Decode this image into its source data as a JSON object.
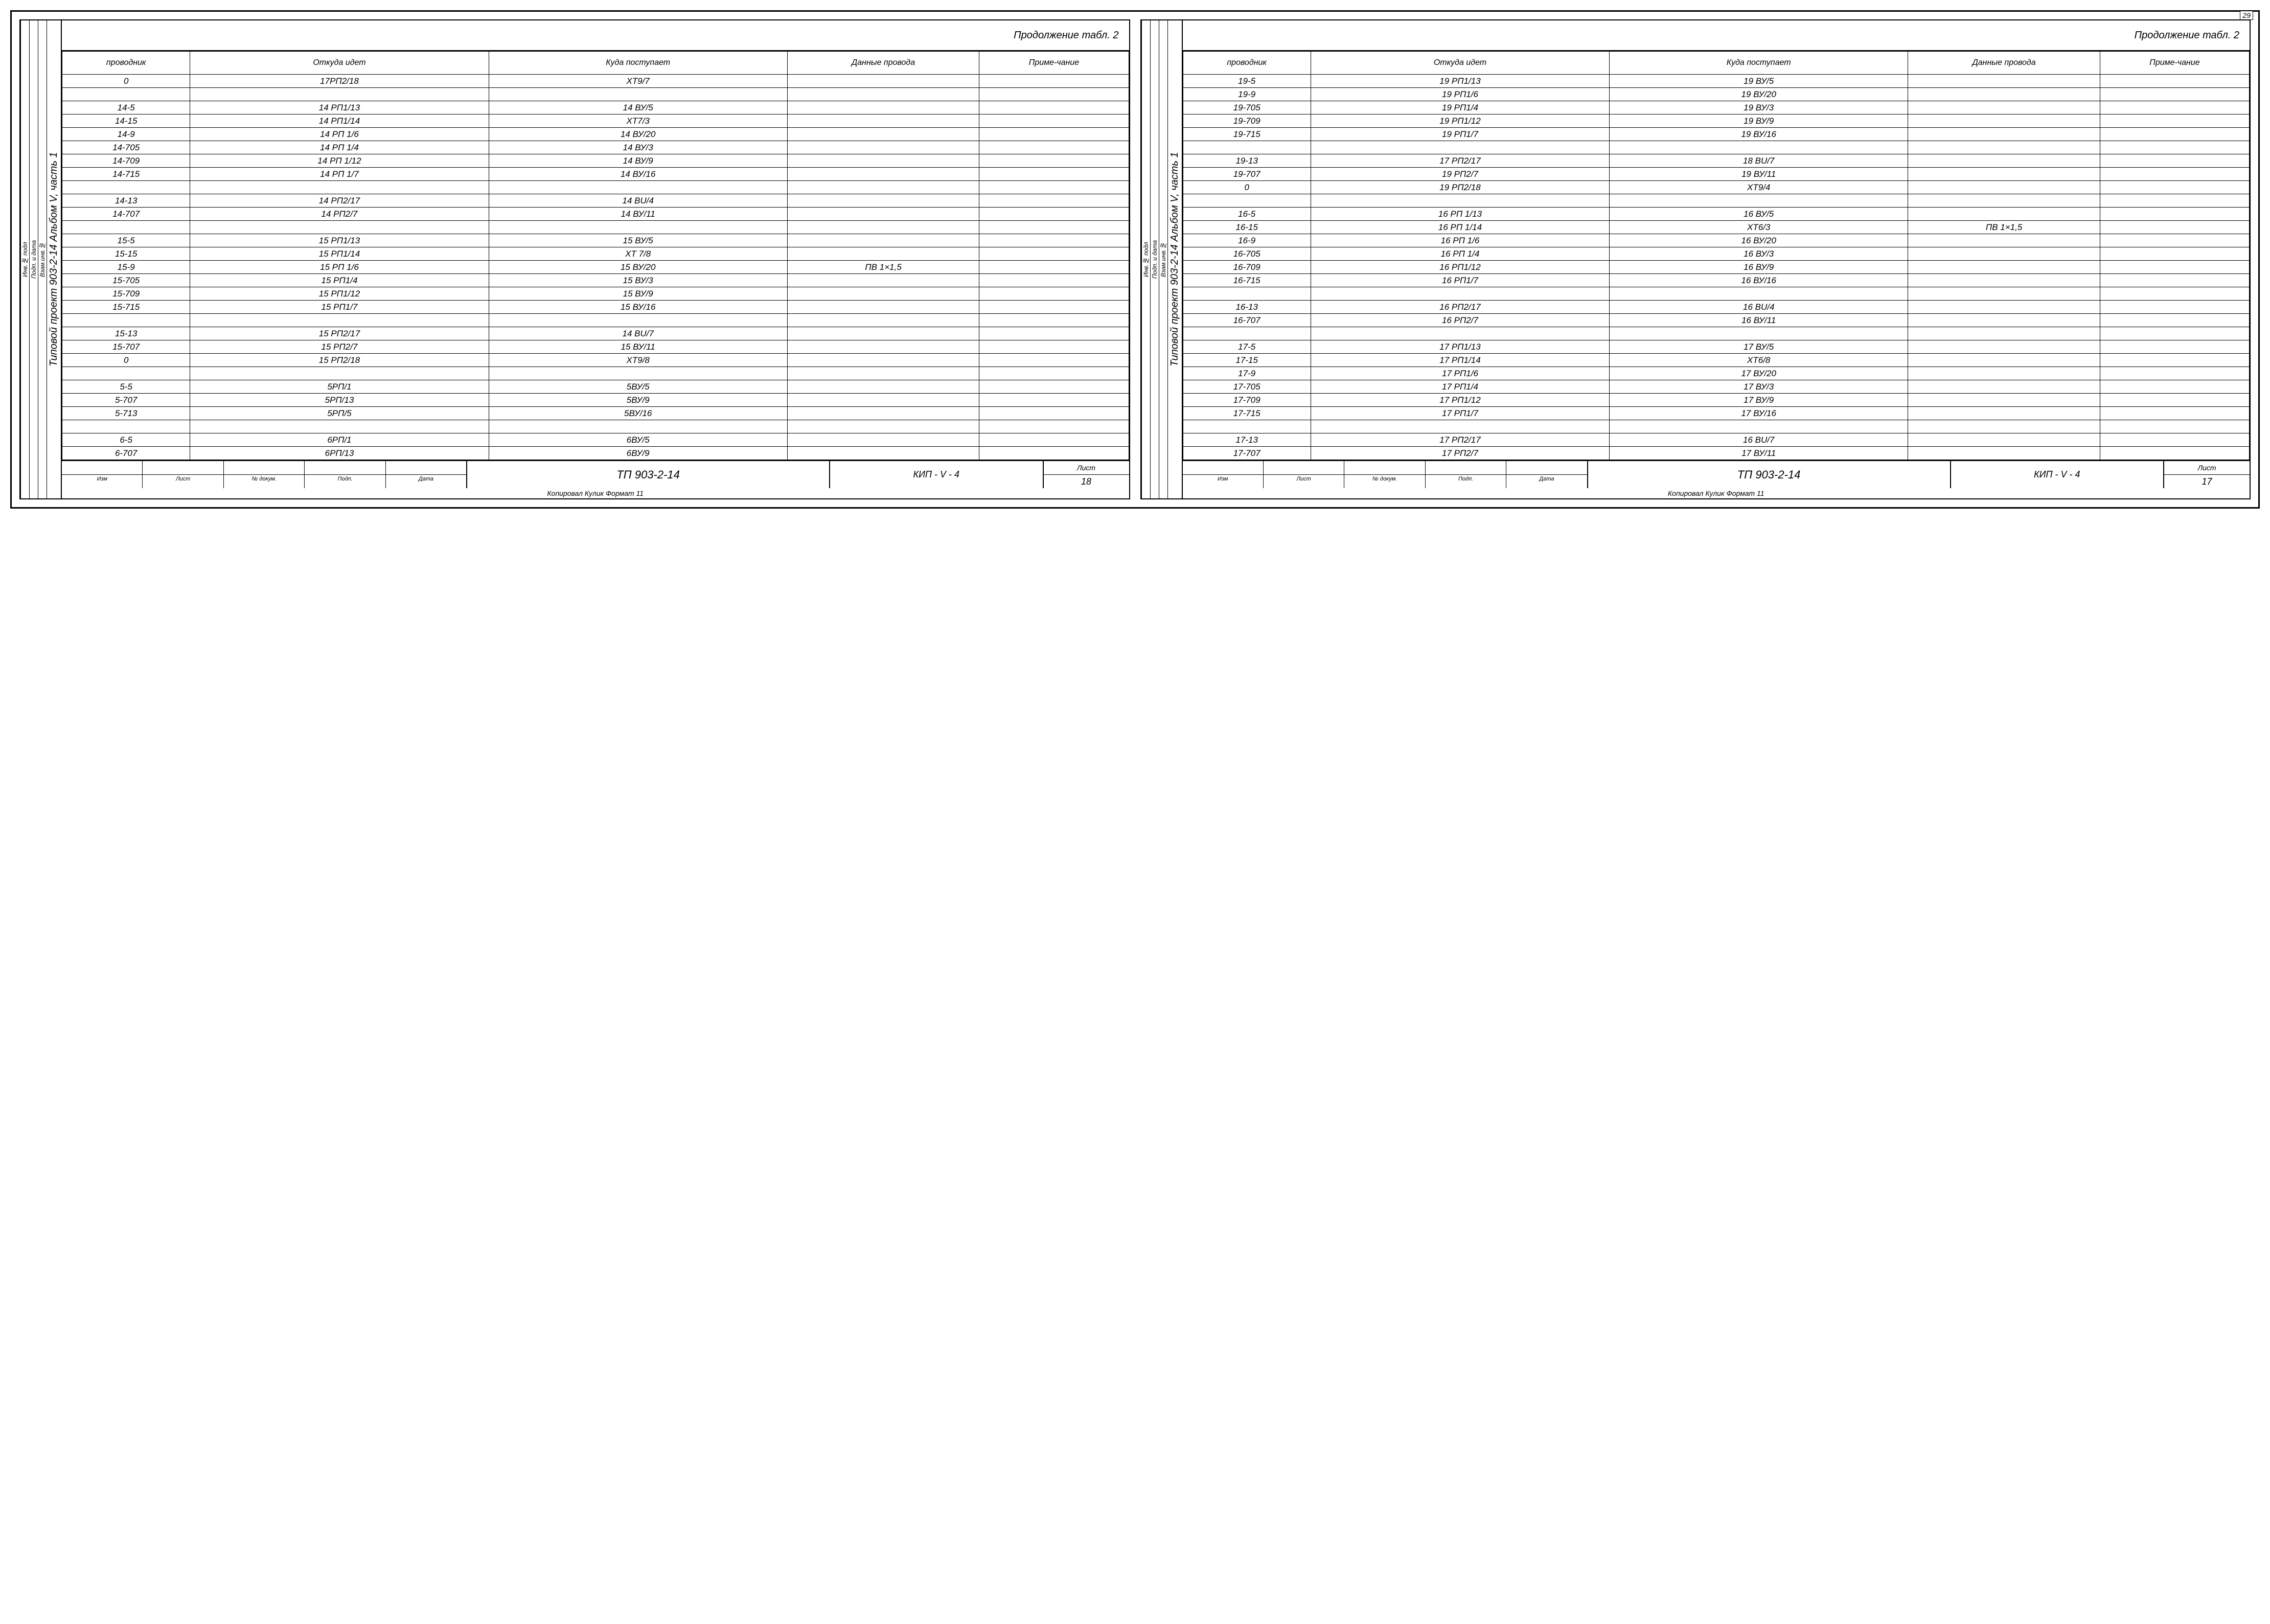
{
  "corner_page": "29",
  "left": {
    "continuation": "Продолжение табл. 2",
    "side_main": "Типовой проект 903-2-14    Альбом V, часть 1",
    "side_small": [
      "Инв.№ подл",
      "Подп. и дата",
      "Взам.инв.№"
    ],
    "headers": [
      "проводник",
      "Откуда идет",
      "Куда поступает",
      "Данные провода",
      "Приме-чание"
    ],
    "rows": [
      [
        "0",
        "17РП2/18",
        "XT9/7",
        "",
        ""
      ],
      [
        "",
        "",
        "",
        "",
        ""
      ],
      [
        "14-5",
        "14 РП1/13",
        "14 ВУ/5",
        "",
        ""
      ],
      [
        "14-15",
        "14 РП1/14",
        "XT7/3",
        "",
        ""
      ],
      [
        "14-9",
        "14 РП 1/6",
        "14 ВУ/20",
        "",
        ""
      ],
      [
        "14-705",
        "14 РП 1/4",
        "14 ВУ/3",
        "",
        ""
      ],
      [
        "14-709",
        "14 РП 1/12",
        "14 ВУ/9",
        "",
        ""
      ],
      [
        "14-715",
        "14 РП 1/7",
        "14 ВУ/16",
        "",
        ""
      ],
      [
        "",
        "",
        "",
        "",
        ""
      ],
      [
        "14-13",
        "14 РП2/17",
        "14 ВU/4",
        "",
        ""
      ],
      [
        "14-707",
        "14 РП2/7",
        "14 ВУ/11",
        "",
        ""
      ],
      [
        "",
        "",
        "",
        "",
        ""
      ],
      [
        "15-5",
        "15 РП1/13",
        "15 ВУ/5",
        "",
        ""
      ],
      [
        "15-15",
        "15 РП1/14",
        "XT 7/8",
        "",
        ""
      ],
      [
        "15-9",
        "15 РП 1/6",
        "15 ВУ/20",
        "ПВ 1×1,5",
        ""
      ],
      [
        "15-705",
        "15 РП1/4",
        "15 ВУ/3",
        "",
        ""
      ],
      [
        "15-709",
        "15 РП1/12",
        "15 ВУ/9",
        "",
        ""
      ],
      [
        "15-715",
        "15 РП1/7",
        "15 ВУ/16",
        "",
        ""
      ],
      [
        "",
        "",
        "",
        "",
        ""
      ],
      [
        "15-13",
        "15 РП2/17",
        "14 ВU/7",
        "",
        ""
      ],
      [
        "15-707",
        "15 РП2/7",
        "15 ВУ/11",
        "",
        ""
      ],
      [
        "0",
        "15 РП2/18",
        "XT9/8",
        "",
        ""
      ],
      [
        "",
        "",
        "",
        "",
        ""
      ],
      [
        "5-5",
        "5РП/1",
        "5ВУ/5",
        "",
        ""
      ],
      [
        "5-707",
        "5РП/13",
        "5ВУ/9",
        "",
        ""
      ],
      [
        "5-713",
        "5РП/5",
        "5ВУ/16",
        "",
        ""
      ],
      [
        "",
        "",
        "",
        "",
        ""
      ],
      [
        "6-5",
        "6РП/1",
        "6ВУ/5",
        "",
        ""
      ],
      [
        "6-707",
        "6РП/13",
        "6ВУ/9",
        "",
        ""
      ]
    ],
    "footer_cells": [
      "Изм",
      "Лист",
      "№ докум.",
      "Подп.",
      "Дата"
    ],
    "footer_title": "ТП 903-2-14",
    "footer_code": "КИП - V - 4",
    "footer_page_label": "Лист",
    "footer_page_num": "18",
    "bottom": "Копировал Кулик    Формат 11"
  },
  "right": {
    "continuation": "Продолжение табл. 2",
    "side_main": "Типовой проект 903-2-14    Альбом V, часть 1",
    "side_small": [
      "Инв.№ подл",
      "Подп. и дата",
      "Взам.инв.№"
    ],
    "headers": [
      "проводник",
      "Откуда идет",
      "Куда поступает",
      "Данные провода",
      "Приме-чание"
    ],
    "rows": [
      [
        "19-5",
        "19 РП1/13",
        "19 ВУ/5",
        "",
        ""
      ],
      [
        "19-9",
        "19 РП1/6",
        "19 ВУ/20",
        "",
        ""
      ],
      [
        "19-705",
        "19 РП1/4",
        "19 ВУ/3",
        "",
        ""
      ],
      [
        "19-709",
        "19 РП1/12",
        "19 ВУ/9",
        "",
        ""
      ],
      [
        "19-715",
        "19 РП1/7",
        "19 ВУ/16",
        "",
        ""
      ],
      [
        "",
        "",
        "",
        "",
        ""
      ],
      [
        "19-13",
        "17 РП2/17",
        "18 ВU/7",
        "",
        ""
      ],
      [
        "19-707",
        "19 РП2/7",
        "19 ВУ/11",
        "",
        ""
      ],
      [
        "0",
        "19 РП2/18",
        "XT9/4",
        "",
        ""
      ],
      [
        "",
        "",
        "",
        "",
        ""
      ],
      [
        "16-5",
        "16 РП 1/13",
        "16 ВУ/5",
        "",
        ""
      ],
      [
        "16-15",
        "16 РП 1/14",
        "XT6/3",
        "ПВ 1×1,5",
        ""
      ],
      [
        "16-9",
        "16 РП 1/6",
        "16 ВУ/20",
        "",
        ""
      ],
      [
        "16-705",
        "16 РП 1/4",
        "16 ВУ/3",
        "",
        ""
      ],
      [
        "16-709",
        "16 РП1/12",
        "16 ВУ/9",
        "",
        ""
      ],
      [
        "16-715",
        "16 РП1/7",
        "16 ВУ/16",
        "",
        ""
      ],
      [
        "",
        "",
        "",
        "",
        ""
      ],
      [
        "16-13",
        "16 РП2/17",
        "16 ВU/4",
        "",
        ""
      ],
      [
        "16-707",
        "16 РП2/7",
        "16 ВУ/11",
        "",
        ""
      ],
      [
        "",
        "",
        "",
        "",
        ""
      ],
      [
        "17-5",
        "17 РП1/13",
        "17 ВУ/5",
        "",
        ""
      ],
      [
        "17-15",
        "17 РП1/14",
        "XT6/8",
        "",
        ""
      ],
      [
        "17-9",
        "17 РП1/6",
        "17 ВУ/20",
        "",
        ""
      ],
      [
        "17-705",
        "17 РП1/4",
        "17 ВУ/3",
        "",
        ""
      ],
      [
        "17-709",
        "17 РП1/12",
        "17 ВУ/9",
        "",
        ""
      ],
      [
        "17-715",
        "17 РП1/7",
        "17 ВУ/16",
        "",
        ""
      ],
      [
        "",
        "",
        "",
        "",
        ""
      ],
      [
        "17-13",
        "17 РП2/17",
        "16 ВU/7",
        "",
        ""
      ],
      [
        "17-707",
        "17 РП2/7",
        "17 ВУ/11",
        "",
        ""
      ]
    ],
    "footer_cells": [
      "Изм",
      "Лист",
      "№ докум.",
      "Подп.",
      "Дата"
    ],
    "footer_title": "ТП 903-2-14",
    "footer_code": "КИП - V - 4",
    "footer_page_label": "Лист",
    "footer_page_num": "17",
    "bottom": "Копировал Кулик    Формат 11"
  }
}
